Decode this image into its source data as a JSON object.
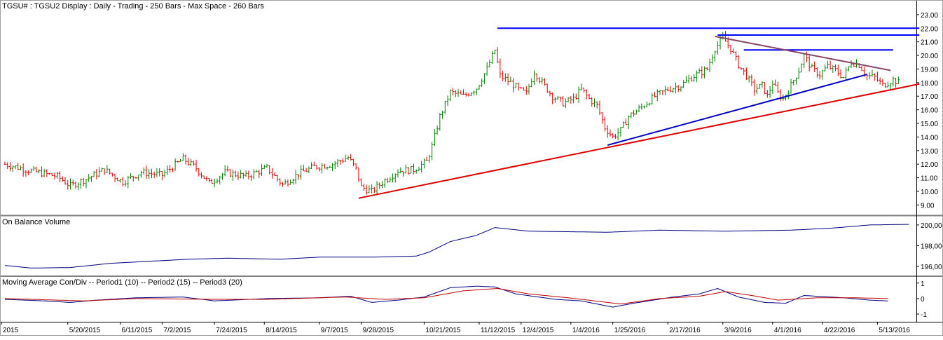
{
  "chart_data": [
    {
      "type": "bar",
      "subtype": "ohlc",
      "title": "TGSU# : TGSU2 Display :  Daily  - Trading - 250 Bars -  Max Space - 260 Bars",
      "ylim": [
        8.4,
        23.2
      ],
      "yticks": [
        "9.00",
        "10.00",
        "11.00",
        "12.00",
        "13.00",
        "14.00",
        "15.00",
        "16.00",
        "17.00",
        "18.00",
        "19.00",
        "20.00",
        "21.00",
        "22.00",
        "23.00"
      ],
      "ytick_values": [
        9,
        10,
        11,
        12,
        13,
        14,
        15,
        16,
        17,
        18,
        19,
        20,
        21,
        22,
        23
      ],
      "up_color": "#008000",
      "down_color": "#e00000",
      "close_anchors": [
        [
          0,
          12.0
        ],
        [
          10,
          11.5
        ],
        [
          20,
          11.1
        ],
        [
          25,
          10.4
        ],
        [
          32,
          11.0
        ],
        [
          38,
          11.6
        ],
        [
          45,
          10.7
        ],
        [
          52,
          11.4
        ],
        [
          60,
          11.2
        ],
        [
          68,
          12.4
        ],
        [
          73,
          11.7
        ],
        [
          78,
          10.6
        ],
        [
          84,
          11.4
        ],
        [
          92,
          11.1
        ],
        [
          100,
          11.7
        ],
        [
          106,
          10.5
        ],
        [
          112,
          11.3
        ],
        [
          118,
          11.8
        ],
        [
          125,
          12.0
        ],
        [
          131,
          12.5
        ],
        [
          134,
          11.6
        ],
        [
          136,
          10.3
        ],
        [
          140,
          10.0
        ],
        [
          145,
          10.8
        ],
        [
          150,
          11.5
        ],
        [
          156,
          11.6
        ],
        [
          161,
          12.2
        ],
        [
          163,
          13.3
        ],
        [
          166,
          15.5
        ],
        [
          170,
          17.3
        ],
        [
          175,
          17.0
        ],
        [
          180,
          17.6
        ],
        [
          184,
          19.0
        ],
        [
          187,
          20.4
        ],
        [
          189,
          18.5
        ],
        [
          193,
          18.0
        ],
        [
          196,
          17.5
        ],
        [
          199,
          17.2
        ],
        [
          202,
          18.8
        ],
        [
          205,
          18.0
        ],
        [
          209,
          17.0
        ],
        [
          213,
          16.5
        ],
        [
          217,
          16.8
        ],
        [
          220,
          17.5
        ],
        [
          223,
          16.8
        ],
        [
          226,
          16.3
        ],
        [
          229,
          14.7
        ],
        [
          232,
          14.0
        ],
        [
          235,
          14.5
        ],
        [
          238,
          15.5
        ],
        [
          243,
          16.2
        ],
        [
          248,
          17.0
        ],
        [
          253,
          17.5
        ],
        [
          258,
          17.8
        ],
        [
          263,
          18.5
        ],
        [
          268,
          19.0
        ],
        [
          271,
          20.5
        ],
        [
          274,
          21.3
        ],
        [
          277,
          20.5
        ],
        [
          280,
          19.3
        ],
        [
          283,
          18.5
        ],
        [
          286,
          17.5
        ],
        [
          289,
          17.8
        ],
        [
          291,
          17.0
        ],
        [
          293,
          18.0
        ],
        [
          295,
          17.2
        ],
        [
          297,
          16.8
        ],
        [
          300,
          17.8
        ],
        [
          303,
          18.9
        ],
        [
          305,
          20.0
        ],
        [
          308,
          19.0
        ],
        [
          311,
          18.6
        ],
        [
          314,
          19.2
        ],
        [
          317,
          18.9
        ],
        [
          320,
          18.4
        ],
        [
          323,
          19.5
        ],
        [
          326,
          19.3
        ],
        [
          329,
          18.5
        ],
        [
          332,
          18.4
        ],
        [
          335,
          17.8
        ],
        [
          337,
          18.0
        ],
        [
          339,
          18.2
        ],
        [
          341,
          18.0
        ]
      ],
      "trendlines": [
        {
          "color": "#0000ff",
          "from": [
            188,
            22.0
          ],
          "to": [
            349,
            22.0
          ]
        },
        {
          "color": "#0000ff",
          "from": [
            272,
            21.5
          ],
          "to": [
            349,
            21.5
          ]
        },
        {
          "color": "#0000ff",
          "from": [
            282,
            20.4
          ],
          "to": [
            339,
            20.4
          ]
        },
        {
          "color": "#884466",
          "from": [
            271,
            21.4
          ],
          "to": [
            338,
            18.9
          ]
        },
        {
          "color": "#0000c0",
          "from": [
            230,
            13.4
          ],
          "to": [
            329,
            18.6
          ]
        },
        {
          "color": "#e00000",
          "from": [
            135,
            9.5
          ],
          "to": [
            349,
            17.9
          ]
        }
      ]
    },
    {
      "type": "line",
      "title": "On Balance Volume",
      "ylim": [
        195.2,
        200.6
      ],
      "yticks": [
        "196,00",
        "198,00",
        "200,00"
      ],
      "ytick_values": [
        196,
        198,
        200
      ],
      "series": [
        {
          "color": "#000080",
          "anchors": [
            [
              0,
              196.1
            ],
            [
              10,
              195.85
            ],
            [
              25,
              195.9
            ],
            [
              40,
              196.3
            ],
            [
              55,
              196.5
            ],
            [
              70,
              196.7
            ],
            [
              85,
              196.8
            ],
            [
              105,
              196.7
            ],
            [
              120,
              196.9
            ],
            [
              140,
              196.9
            ],
            [
              157,
              197.0
            ],
            [
              162,
              197.4
            ],
            [
              170,
              198.4
            ],
            [
              180,
              199.0
            ],
            [
              187,
              199.75
            ],
            [
              200,
              199.4
            ],
            [
              230,
              199.3
            ],
            [
              250,
              199.5
            ],
            [
              275,
              199.4
            ],
            [
              300,
              199.5
            ],
            [
              316,
              199.7
            ],
            [
              330,
              200.0
            ],
            [
              343,
              200.05
            ],
            [
              345,
              200.05
            ]
          ]
        }
      ]
    },
    {
      "type": "line",
      "title": "Moving Average Con/Div --  Period1 (10) --  Period2 (15) --  Period3 (20)",
      "ylim": [
        -1.45,
        1.35
      ],
      "yticks": [
        "-1",
        "0",
        "1"
      ],
      "ytick_values": [
        -1,
        0,
        1
      ],
      "series": [
        {
          "color": "#000080",
          "anchors": [
            [
              0,
              -0.05
            ],
            [
              15,
              -0.15
            ],
            [
              25,
              -0.25
            ],
            [
              35,
              -0.1
            ],
            [
              50,
              0.05
            ],
            [
              68,
              0.1
            ],
            [
              80,
              -0.15
            ],
            [
              100,
              0.0
            ],
            [
              120,
              0.05
            ],
            [
              132,
              0.15
            ],
            [
              140,
              -0.25
            ],
            [
              150,
              -0.1
            ],
            [
              160,
              0.1
            ],
            [
              170,
              0.7
            ],
            [
              180,
              0.8
            ],
            [
              187,
              0.75
            ],
            [
              195,
              0.3
            ],
            [
              210,
              -0.05
            ],
            [
              220,
              -0.15
            ],
            [
              232,
              -0.55
            ],
            [
              240,
              -0.3
            ],
            [
              255,
              0.1
            ],
            [
              265,
              0.3
            ],
            [
              272,
              0.65
            ],
            [
              280,
              0.1
            ],
            [
              290,
              -0.25
            ],
            [
              298,
              -0.3
            ],
            [
              305,
              0.2
            ],
            [
              320,
              0.05
            ],
            [
              330,
              -0.1
            ],
            [
              337,
              -0.15
            ]
          ]
        },
        {
          "color": "#c00000",
          "anchors": [
            [
              0,
              0.0
            ],
            [
              20,
              -0.1
            ],
            [
              30,
              -0.15
            ],
            [
              50,
              0.0
            ],
            [
              80,
              -0.05
            ],
            [
              100,
              -0.05
            ],
            [
              130,
              0.1
            ],
            [
              145,
              -0.05
            ],
            [
              160,
              0.05
            ],
            [
              175,
              0.5
            ],
            [
              188,
              0.65
            ],
            [
              200,
              0.3
            ],
            [
              215,
              0.05
            ],
            [
              235,
              -0.35
            ],
            [
              250,
              0.0
            ],
            [
              265,
              0.15
            ],
            [
              275,
              0.45
            ],
            [
              285,
              0.2
            ],
            [
              295,
              -0.1
            ],
            [
              310,
              0.05
            ],
            [
              325,
              0.05
            ],
            [
              337,
              0.0
            ]
          ]
        }
      ]
    }
  ],
  "x_axis": {
    "labels": [
      "2015",
      "5/20/2015",
      "6/11/2015",
      "7/2/2015",
      "7/24/2015",
      "8/14/2015",
      "9/7/2015",
      "9/28/2015",
      "10/21/2015",
      "11/12/2015",
      "12/4/2015",
      "1/4/2016",
      "1/25/2016",
      "2/17/2016",
      "3/9/2016",
      "4/1/2016",
      "4/22/2016",
      "5/13/2016"
    ],
    "label_bars": [
      0,
      24,
      44,
      60,
      80,
      99,
      120,
      136,
      160,
      181,
      197,
      216,
      232,
      253,
      274,
      293,
      312,
      333
    ]
  }
}
